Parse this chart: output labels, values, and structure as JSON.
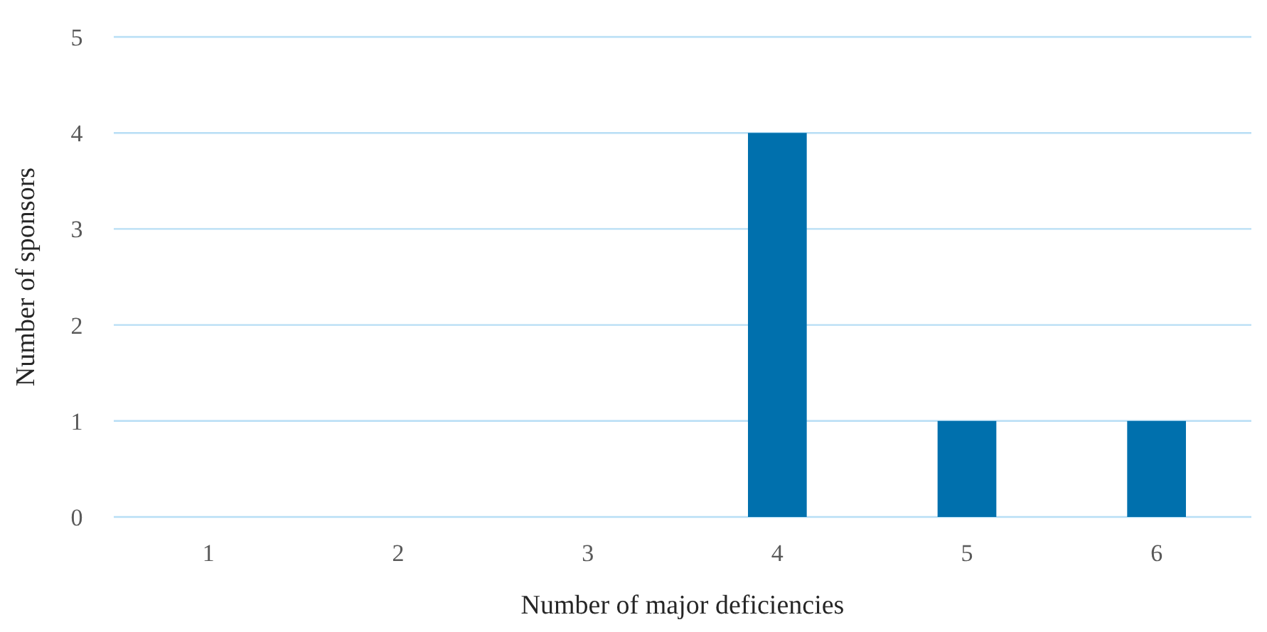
{
  "chart_data": {
    "type": "bar",
    "xlabel": "Number of major deficiencies",
    "ylabel": "Number of sponsors",
    "categories": [
      "1",
      "2",
      "3",
      "4",
      "5",
      "6"
    ],
    "values": [
      0,
      0,
      0,
      4,
      1,
      1
    ],
    "color": "#0070ad",
    "ylim": [
      0,
      5
    ],
    "yticks": [
      0,
      1,
      2,
      3,
      4,
      5
    ],
    "grid": "y"
  }
}
